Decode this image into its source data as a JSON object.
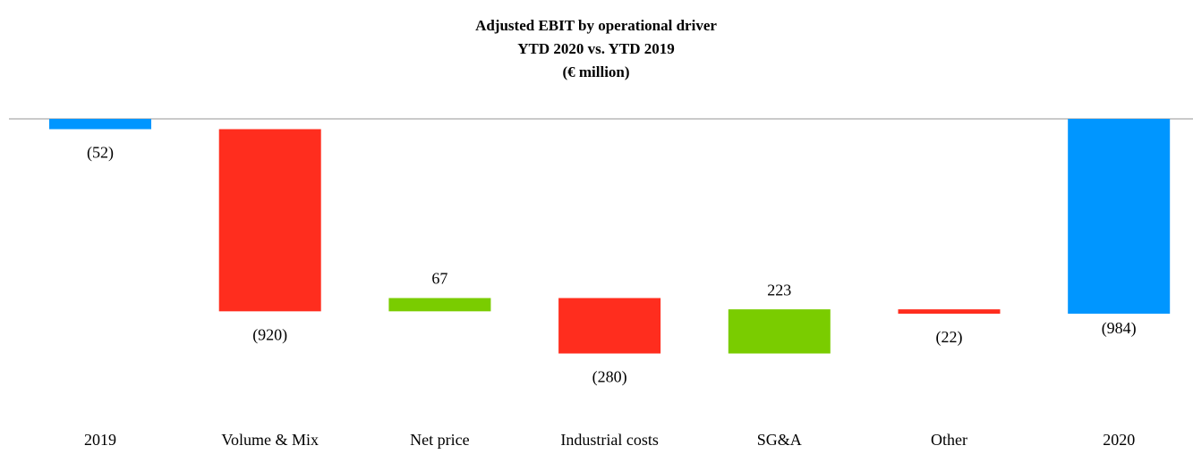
{
  "chart_data": {
    "type": "waterfall",
    "title": [
      "Adjusted EBIT by operational driver",
      "YTD 2020 vs. YTD 2019",
      "(€ million)"
    ],
    "categories": [
      "2019",
      "Volume & Mix",
      "Net price",
      "Industrial costs",
      "SG&A",
      "Other",
      "2020"
    ],
    "values": [
      -52,
      -920,
      67,
      -280,
      223,
      -22,
      -984
    ],
    "value_labels": [
      "(52)",
      "(920)",
      "67",
      "(280)",
      "223",
      "(22)",
      "(984)"
    ],
    "is_total": [
      true,
      false,
      false,
      false,
      false,
      false,
      true
    ],
    "total_color": "#0096ff",
    "increase_color": "#7acc00",
    "decrease_color": "#ff2d1e"
  }
}
